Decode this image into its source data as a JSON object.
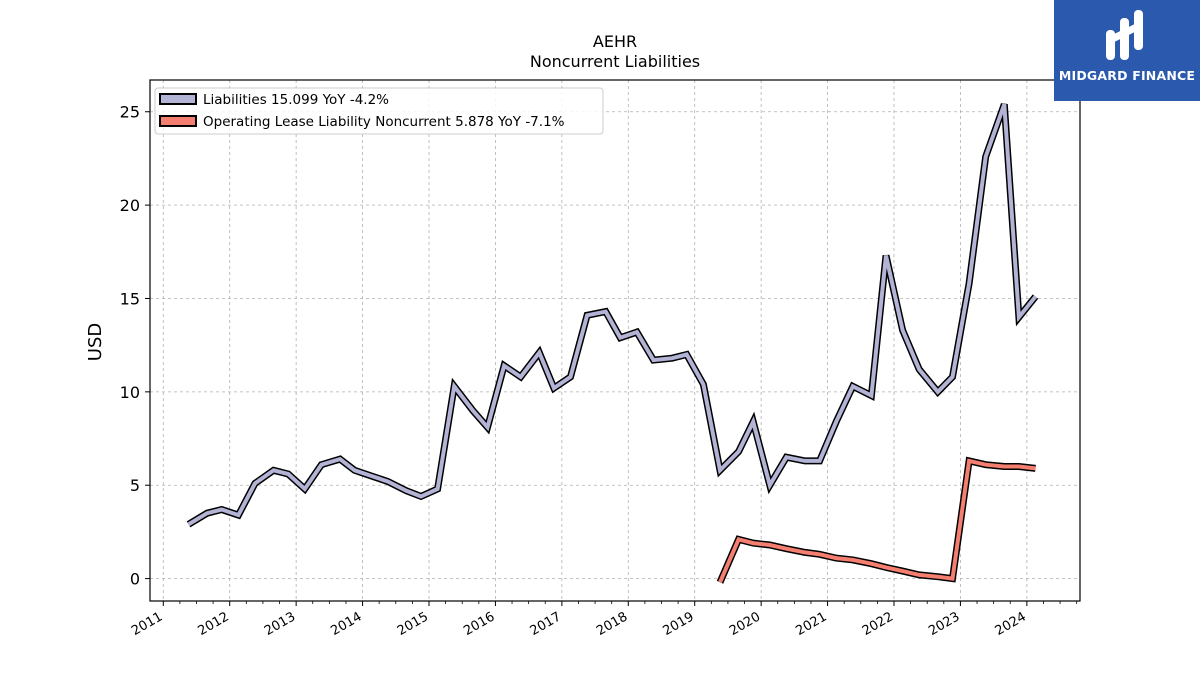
{
  "chart_data": {
    "type": "line",
    "title": "AEHR",
    "subtitle": "Noncurrent  Liabilities",
    "ylabel": "USD",
    "xlabel": "",
    "ylim": [
      -1.2,
      26.7
    ],
    "xlim": [
      2010.8,
      2024.8
    ],
    "yticks": [
      0,
      5,
      10,
      15,
      20,
      25
    ],
    "xticks": [
      "2011",
      "2012",
      "2013",
      "2014",
      "2015",
      "2016",
      "2017",
      "2018",
      "2019",
      "2020",
      "2021",
      "2022",
      "2023",
      "2024"
    ],
    "grid": true,
    "legend_position": "top-left",
    "series": [
      {
        "name": "Liabilities",
        "legend_label": "Liabilities  15.099 YoY -4.2%",
        "color": "#b3b3d6",
        "x": [
          2011.38,
          2011.66,
          2011.88,
          2012.13,
          2012.38,
          2012.66,
          2012.88,
          2013.13,
          2013.38,
          2013.66,
          2013.88,
          2014.13,
          2014.38,
          2014.66,
          2014.88,
          2015.13,
          2015.38,
          2015.66,
          2015.88,
          2016.13,
          2016.38,
          2016.66,
          2016.88,
          2017.13,
          2017.38,
          2017.66,
          2017.88,
          2018.13,
          2018.38,
          2018.66,
          2018.88,
          2019.13,
          2019.38,
          2019.66,
          2019.88,
          2020.13,
          2020.38,
          2020.66,
          2020.88,
          2021.13,
          2021.38,
          2021.66,
          2021.88,
          2022.13,
          2022.38,
          2022.66,
          2022.88,
          2023.13,
          2023.38,
          2023.66,
          2023.88,
          2024.13
        ],
        "values": [
          2.9,
          3.5,
          3.7,
          3.4,
          5.1,
          5.8,
          5.6,
          4.8,
          6.1,
          6.4,
          5.8,
          5.5,
          5.2,
          4.7,
          4.4,
          4.8,
          10.3,
          9.0,
          8.1,
          11.4,
          10.8,
          12.1,
          10.2,
          10.8,
          14.1,
          14.3,
          12.9,
          13.2,
          11.7,
          11.8,
          12.0,
          10.4,
          5.8,
          6.8,
          8.4,
          5.0,
          6.5,
          6.3,
          6.3,
          8.4,
          10.3,
          9.8,
          17.3,
          13.3,
          11.2,
          10.0,
          10.8,
          15.8,
          22.6,
          25.4,
          14.0,
          15.1
        ]
      },
      {
        "name": "Operating Lease Liability Noncurrent",
        "legend_label": "Operating Lease Liability Noncurrent  5.878 YoY -7.1%",
        "color": "#f47f70",
        "x": [
          2019.38,
          2019.66,
          2019.88,
          2020.13,
          2020.38,
          2020.66,
          2020.88,
          2021.13,
          2021.38,
          2021.66,
          2021.88,
          2022.13,
          2022.38,
          2022.66,
          2022.88,
          2023.13,
          2023.38,
          2023.66,
          2023.88,
          2024.13
        ],
        "values": [
          -0.2,
          2.1,
          1.9,
          1.8,
          1.6,
          1.4,
          1.3,
          1.1,
          1.0,
          0.8,
          0.6,
          0.4,
          0.2,
          0.1,
          0.0,
          6.3,
          6.1,
          6.0,
          6.0,
          5.9
        ]
      }
    ]
  },
  "logo": {
    "text": "MIDGARD FINANCE",
    "background": "#2a59ad"
  }
}
